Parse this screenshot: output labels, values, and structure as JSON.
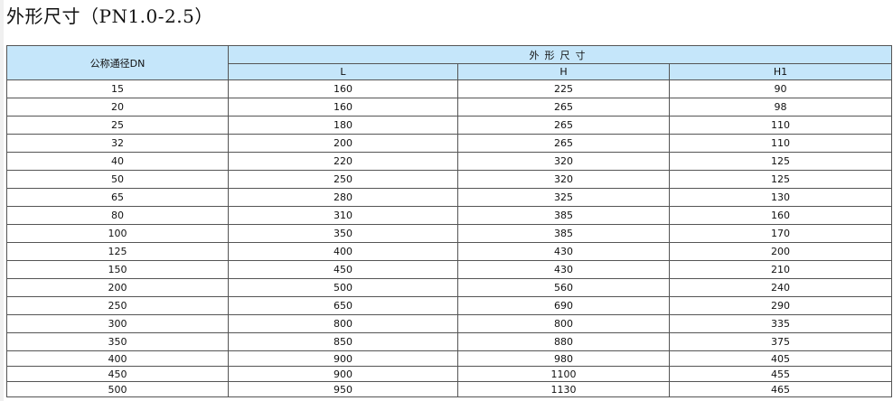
{
  "title": "外形尺寸（PN1.0-2.5）",
  "table": {
    "col_dn": "公称通径DN",
    "group_header": "外形尺寸",
    "sub_headers": [
      "L",
      "H",
      "H1"
    ],
    "rows": [
      [
        "15",
        "160",
        "225",
        "90"
      ],
      [
        "20",
        "160",
        "265",
        "98"
      ],
      [
        "25",
        "180",
        "265",
        "110"
      ],
      [
        "32",
        "200",
        "265",
        "110"
      ],
      [
        "40",
        "220",
        "320",
        "125"
      ],
      [
        "50",
        "250",
        "320",
        "125"
      ],
      [
        "65",
        "280",
        "325",
        "130"
      ],
      [
        "80",
        "310",
        "385",
        "160"
      ],
      [
        "100",
        "350",
        "385",
        "170"
      ],
      [
        "125",
        "400",
        "430",
        "200"
      ],
      [
        "150",
        "450",
        "430",
        "210"
      ],
      [
        "200",
        "500",
        "560",
        "240"
      ],
      [
        "250",
        "650",
        "690",
        "290"
      ],
      [
        "300",
        "800",
        "800",
        "335"
      ],
      [
        "350",
        "850",
        "880",
        "375"
      ],
      [
        "400",
        "900",
        "980",
        "405"
      ],
      [
        "450",
        "900",
        "1100",
        "455"
      ],
      [
        "500",
        "950",
        "1130",
        "465"
      ]
    ]
  },
  "colors": {
    "header_bg": "#c5e6fa",
    "border": "#555555"
  }
}
